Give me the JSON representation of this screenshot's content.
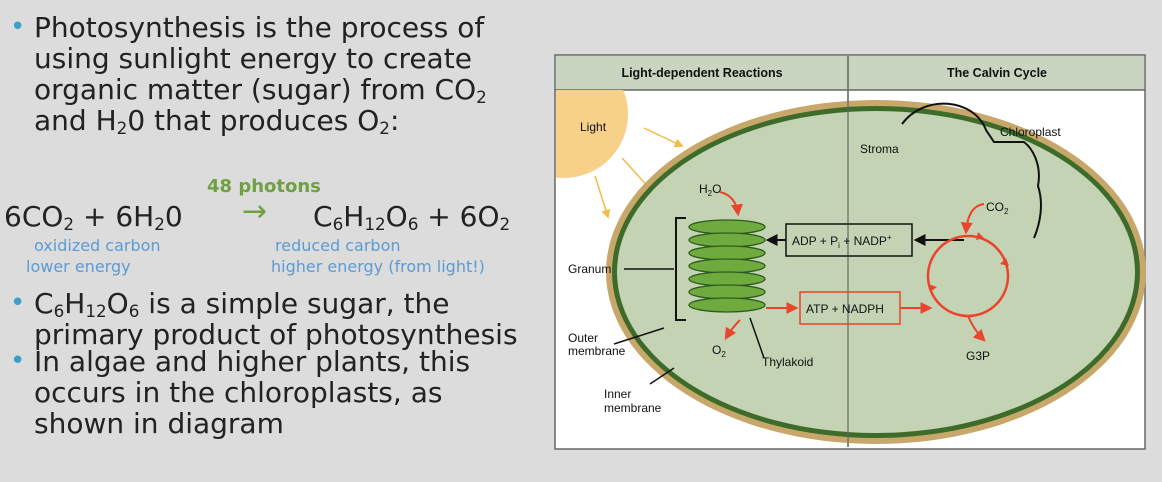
{
  "bullets": {
    "b1_line1": "Photosynthesis is the process of",
    "b1_line2": "using sunlight energy to create",
    "b1_line3": "organic matter (sugar) from CO",
    "b1_line3_sub": "2",
    "b1_line4a": "and H",
    "b1_line4_sub1": "2",
    "b1_line4b": "0 that produces O",
    "b1_line4_sub2": "2",
    "b1_line4c": ":",
    "b2_line1a": "C",
    "b2_sub1": "6",
    "b2_line1b": "H",
    "b2_sub2": "12",
    "b2_line1c": "O",
    "b2_sub3": "6",
    "b2_line1d": " is a simple sugar, the",
    "b2_line2": "primary product of photosynthesis",
    "b3_line1": "In algae and higher plants, this",
    "b3_line2": "occurs in the chloroplasts, as",
    "b3_line3": "shown in diagram"
  },
  "equation": {
    "photons": "48 photons",
    "arrow": "→",
    "left_a": "6CO",
    "left_sub1": "2",
    "left_b": " + 6H",
    "left_sub2": "2",
    "left_c": "0",
    "right_a": "C",
    "right_sub1": "6",
    "right_b": "H",
    "right_sub2": "12",
    "right_c": "O",
    "right_sub3": "6",
    "right_d": " + 6O",
    "right_sub4": "2",
    "note_left1": "oxidized carbon",
    "note_left2": "lower energy",
    "note_right1": "reduced carbon",
    "note_right2": "higher energy (from light!)"
  },
  "diagram": {
    "header_left": "Light-dependent Reactions",
    "header_right": "The Calvin Cycle",
    "light": "Light",
    "chloroplast": "Chloroplast",
    "stroma": "Stroma",
    "h2o_a": "H",
    "h2o_sub": "2",
    "h2o_b": "O",
    "co2_a": "CO",
    "co2_sub": "2",
    "adp_a": "ADP + P",
    "adp_sub": "i",
    "adp_b": " + NADP",
    "adp_sup": "+",
    "atp": "ATP + NADPH",
    "granum": "Granum",
    "outer1": "Outer",
    "outer2": "membrane",
    "o2_a": "O",
    "o2_sub": "2",
    "thylakoid": "Thylakoid",
    "g3p": "G3P",
    "inner1": "Inner",
    "inner2": "membrane",
    "colors": {
      "header_bg": "#c9d5c0",
      "stroma": "#c3d3b4",
      "inner_membrane": "#3c6b2a",
      "outer_membrane": "#c8a76a",
      "sun": "#f7d08a",
      "red_arrow": "#e8452c",
      "thylakoid": "#6faa3f"
    }
  }
}
